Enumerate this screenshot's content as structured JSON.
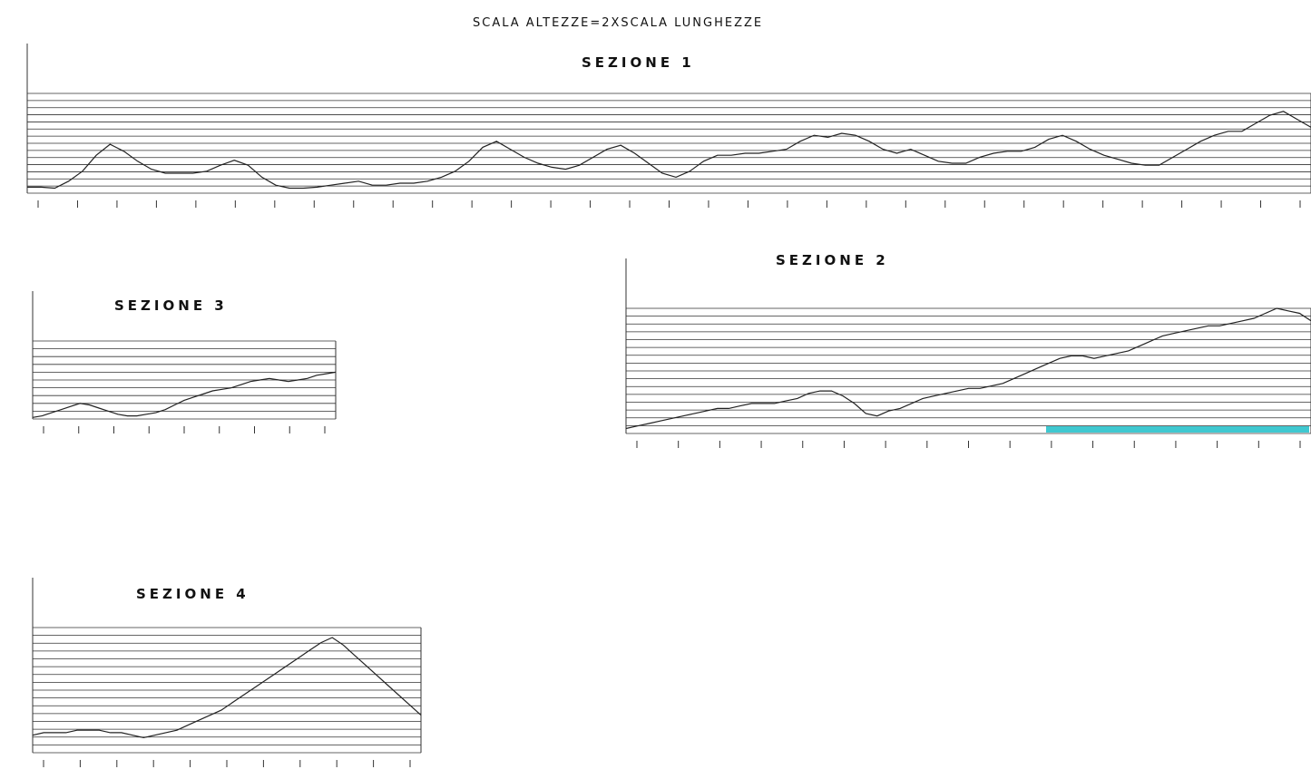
{
  "header": {
    "scale_note": "SCALA ALTEZZE=2XSCALA LUNGHEZZE"
  },
  "sections": [
    {
      "title": "SEZIONE 1",
      "profile": [
        6,
        6,
        5,
        12,
        22,
        38,
        49,
        42,
        32,
        24,
        20,
        20,
        20,
        22,
        28,
        33,
        28,
        16,
        8,
        5,
        5,
        6,
        8,
        10,
        12,
        8,
        8,
        10,
        10,
        12,
        16,
        22,
        32,
        46,
        52,
        44,
        36,
        30,
        26,
        24,
        28,
        36,
        44,
        48,
        40,
        30,
        20,
        16,
        22,
        32,
        38,
        38,
        40,
        40,
        42,
        44,
        52,
        58,
        56,
        60,
        58,
        52,
        44,
        40,
        44,
        38,
        32,
        30,
        30,
        36,
        40,
        42,
        42,
        46,
        54,
        58,
        52,
        44,
        38,
        34,
        30,
        28,
        28,
        36,
        44,
        52,
        58,
        62,
        62,
        70,
        78,
        82,
        74,
        66
      ],
      "max_value": 100
    },
    {
      "title": "SEZIONE 2",
      "profile": [
        4,
        6,
        8,
        10,
        12,
        14,
        16,
        18,
        20,
        20,
        22,
        24,
        24,
        24,
        26,
        28,
        32,
        34,
        34,
        30,
        24,
        16,
        14,
        18,
        20,
        24,
        28,
        30,
        32,
        34,
        36,
        36,
        38,
        40,
        44,
        48,
        52,
        56,
        60,
        62,
        62,
        60,
        62,
        64,
        66,
        70,
        74,
        78,
        80,
        82,
        84,
        86,
        86,
        88,
        90,
        92,
        96,
        100,
        98,
        96,
        90
      ],
      "max_value": 100
    },
    {
      "title": "SEZIONE 3",
      "profile": [
        2,
        4,
        8,
        12,
        16,
        20,
        18,
        14,
        10,
        6,
        4,
        4,
        6,
        8,
        12,
        18,
        24,
        28,
        32,
        36,
        38,
        40,
        44,
        48,
        50,
        52,
        50,
        48,
        50,
        52,
        56,
        58,
        60
      ],
      "max_value": 100
    },
    {
      "title": "SEZIONE 4",
      "profile": [
        14,
        16,
        16,
        16,
        18,
        18,
        18,
        16,
        16,
        14,
        12,
        14,
        16,
        18,
        22,
        26,
        30,
        34,
        40,
        46,
        52,
        58,
        64,
        70,
        76,
        82,
        88,
        92,
        86,
        78,
        70,
        62,
        54,
        46,
        38,
        30
      ],
      "max_value": 100
    }
  ],
  "colors": {
    "line": "#222222",
    "grid": "#333333",
    "highlight": "#3fc8d0"
  }
}
